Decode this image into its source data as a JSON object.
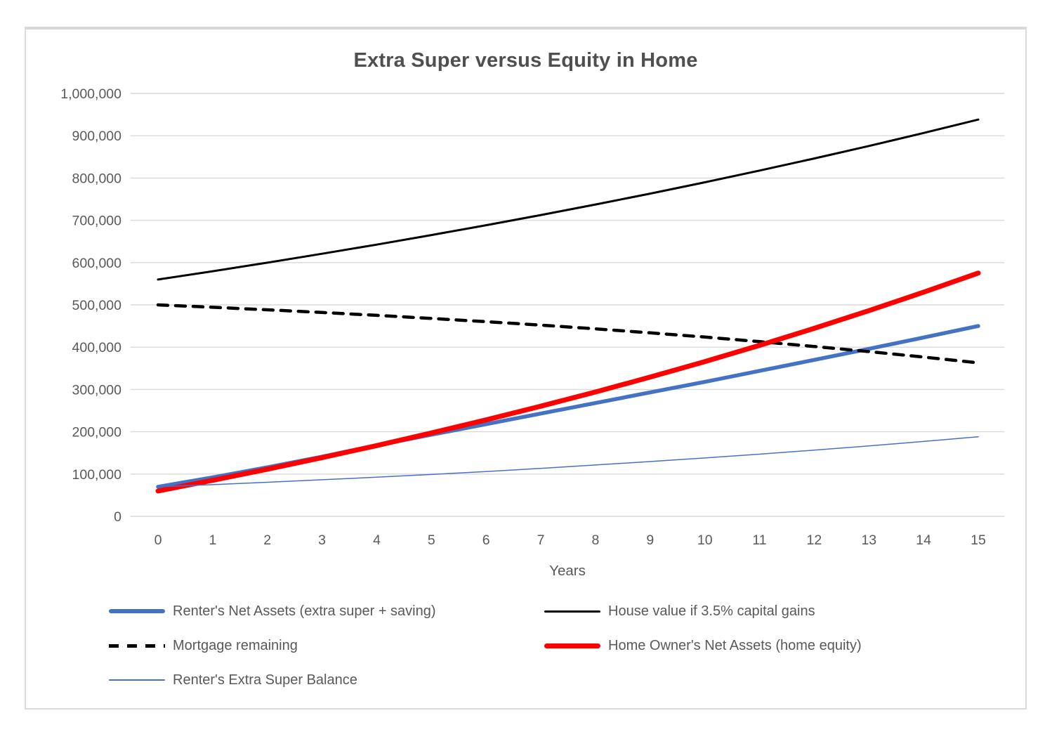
{
  "chart_data": {
    "type": "line",
    "title": "Extra Super versus Equity in Home",
    "xlabel": "Years",
    "ylabel": "",
    "x": [
      0,
      1,
      2,
      3,
      4,
      5,
      6,
      7,
      8,
      9,
      10,
      11,
      12,
      13,
      14,
      15
    ],
    "x_tick_labels": [
      "0",
      "1",
      "2",
      "3",
      "4",
      "5",
      "6",
      "7",
      "8",
      "9",
      "10",
      "11",
      "12",
      "13",
      "14",
      "15"
    ],
    "ylim": [
      0,
      1000000
    ],
    "y_tick_step": 100000,
    "y_tick_labels": [
      "0",
      "100,000",
      "200,000",
      "300,000",
      "400,000",
      "500,000",
      "600,000",
      "700,000",
      "800,000",
      "900,000",
      "1,000,000"
    ],
    "grid": "horizontal",
    "legend_position": "bottom",
    "legend_columns": 2,
    "colors": {
      "gridline": "#d9d9d9",
      "tick_text": "#595959",
      "title_text": "#4f4f4f",
      "accent_blue": "#4472C4",
      "accent_red": "#FF0000",
      "accent_black": "#000000"
    },
    "series": [
      {
        "key": "renters-net-assets",
        "name": "Renter's Net Assets (extra super + saving)",
        "color": "#4472C4",
        "style": "solid",
        "width": 5.5,
        "values": [
          70000,
          92000,
          116000,
          141000,
          168000,
          193000,
          218000,
          243000,
          268000,
          293000,
          318000,
          344000,
          370000,
          396000,
          423000,
          450000
        ]
      },
      {
        "key": "house-value",
        "name": "House value if 3.5% capital gains",
        "color": "#000000",
        "style": "solid",
        "width": 3,
        "values": [
          560000,
          579600,
          599900,
          620900,
          642600,
          665100,
          688400,
          712500,
          737400,
          763200,
          789900,
          817600,
          846200,
          875800,
          906500,
          938200
        ]
      },
      {
        "key": "mortgage-remaining",
        "name": "Mortgage remaining",
        "color": "#000000",
        "style": "dashed",
        "width": 4.5,
        "values": [
          500000,
          494400,
          488400,
          482100,
          475300,
          468000,
          460300,
          452100,
          443300,
          433900,
          423900,
          413200,
          401600,
          389500,
          376500,
          362900
        ]
      },
      {
        "key": "home-owners-net-assets",
        "name": "Home Owner's Net Assets (home equity)",
        "color": "#FF0000",
        "style": "solid",
        "width": 7,
        "values": [
          60000,
          85200,
          111500,
          138800,
          167300,
          197100,
          228100,
          260400,
          294100,
          329300,
          366000,
          404400,
          444600,
          486300,
          530000,
          575300
        ]
      },
      {
        "key": "renters-extra-super-balance",
        "name": "Renter's Extra Super Balance",
        "color": "#4472C4",
        "style": "solid",
        "width": 1.5,
        "values": [
          70000,
          75000,
          80500,
          86500,
          92500,
          99000,
          106000,
          113500,
          121500,
          129500,
          138000,
          147000,
          156500,
          166500,
          177000,
          188000
        ]
      }
    ]
  }
}
